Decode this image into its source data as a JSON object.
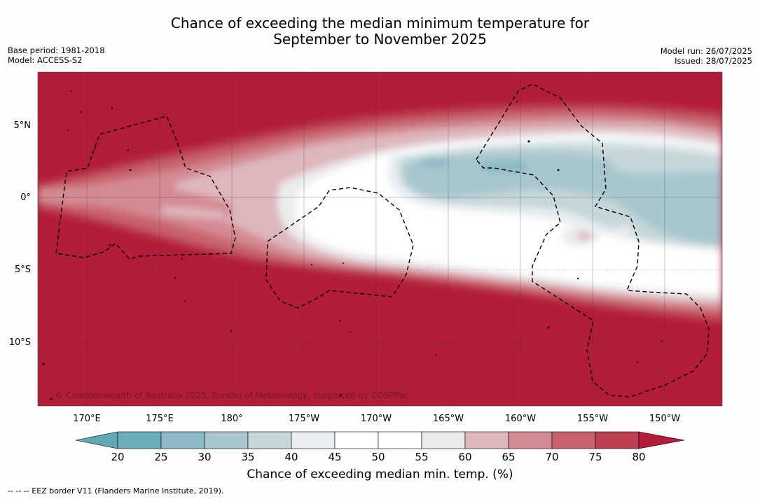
{
  "title": {
    "line1": "Chance of exceeding the median minimum temperature for",
    "line2": "September to November 2025"
  },
  "meta_left": {
    "base_period": "Base period: 1981-2018",
    "model": "Model: ACCESS-S2"
  },
  "meta_right": {
    "model_run": "Model run: 26/07/2025",
    "issued": "Issued: 28/07/2025"
  },
  "map": {
    "lat_labels": [
      "5°N",
      "0°",
      "5°S",
      "10°S"
    ],
    "lon_labels": [
      "170°E",
      "175°E",
      "180°",
      "175°W",
      "170°W",
      "165°W",
      "160°W",
      "155°W",
      "150°W"
    ],
    "credit": "© Commonwealth of Australia 2025, Bureau of Meteorology, supported by COSPPac"
  },
  "colorbar": {
    "ticks": [
      "20",
      "25",
      "30",
      "35",
      "40",
      "45",
      "50",
      "55",
      "60",
      "65",
      "70",
      "75",
      "80"
    ],
    "colors": [
      "#5fa8b6",
      "#6aaebb",
      "#8bb9c6",
      "#a8c7cd",
      "#c6d7dc",
      "#e9eff1",
      "#ffffff",
      "#ffffff",
      "#ecebec",
      "#deb7bd",
      "#d48a92",
      "#c7636f",
      "#bc3f52",
      "#b21c3a"
    ],
    "title": "Chance of exceeding median min. temp. (%)"
  },
  "legend_note": "--  --  -- EEZ border V11 (Flanders Marine Institute, 2019)."
}
